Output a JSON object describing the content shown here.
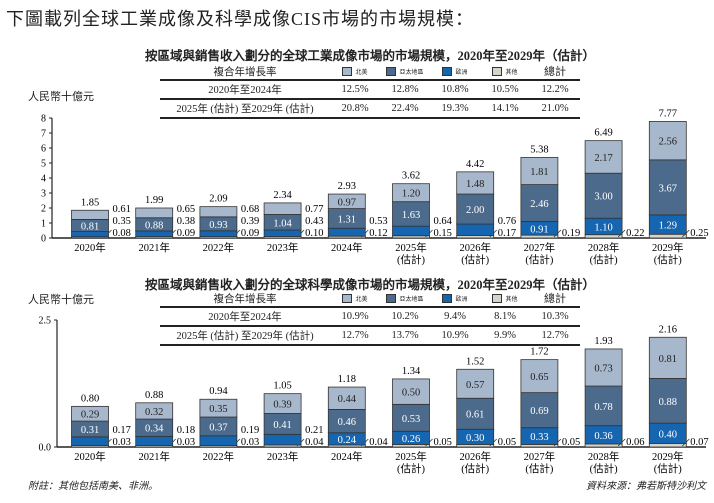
{
  "page_title": "下圖載列全球工業成像及科學成像CIS市場的市場規模：",
  "legend": {
    "na": "北美",
    "apac": "亞太地區",
    "eu": "歐洲",
    "other": "其他",
    "total": "總計",
    "cagr": "複合年增長率"
  },
  "colors": {
    "na": "#a8b8cc",
    "apac": "#4c6b8c",
    "eu": "#1565b0",
    "other": "#d4d6ce"
  },
  "footnote": "附註：其他包括南美、非洲。",
  "source": "資料來源：弗若斯特沙利文",
  "chart_data": [
    {
      "type": "bar",
      "stacked": true,
      "title": "按區域與銷售收入劃分的全球工業成像市場的市場規模，2020年至2029年（估計）",
      "ylabel": "人民幣十億元",
      "ylim": [
        0,
        8
      ],
      "yticks": [
        "0",
        "1",
        "2",
        "3",
        "4",
        "5",
        "6",
        "7",
        "8"
      ],
      "categories": [
        "2020年",
        "2021年",
        "2022年",
        "2023年",
        "2024年",
        "2025年",
        "2026年",
        "2027年",
        "2028年",
        "2029年"
      ],
      "category_sub": [
        "",
        "",
        "",
        "",
        "",
        "(估計)",
        "(估計)",
        "(估計)",
        "(估計)",
        "(估計)"
      ],
      "series": [
        {
          "name": "其他",
          "key": "other",
          "values": [
            0.08,
            0.09,
            0.09,
            0.1,
            0.12,
            0.15,
            0.17,
            0.19,
            0.22,
            0.25
          ]
        },
        {
          "name": "歐洲",
          "key": "eu",
          "values": [
            0.35,
            0.38,
            0.39,
            0.43,
            0.53,
            0.64,
            0.76,
            0.91,
            1.1,
            1.29
          ]
        },
        {
          "name": "亞太地區",
          "key": "apac",
          "values": [
            0.81,
            0.88,
            0.93,
            1.04,
            1.31,
            1.63,
            2.0,
            2.46,
            3.0,
            3.67
          ]
        },
        {
          "name": "北美",
          "key": "na",
          "values": [
            0.61,
            0.65,
            0.68,
            0.77,
            0.97,
            1.2,
            1.48,
            1.81,
            2.17,
            2.56
          ]
        }
      ],
      "totals": [
        "1.85",
        "1.99",
        "2.09",
        "2.34",
        "2.93",
        "3.62",
        "4.42",
        "5.38",
        "6.49",
        "7.77"
      ],
      "cagr_rows": [
        {
          "period": "2020年至2024年",
          "values": [
            "12.5%",
            "12.8%",
            "10.8%",
            "10.5%",
            "12.2%"
          ]
        },
        {
          "period": "2025年 (估計) 至2029年 (估計)",
          "values": [
            "20.8%",
            "22.4%",
            "19.3%",
            "14.1%",
            "21.0%"
          ]
        }
      ]
    },
    {
      "type": "bar",
      "stacked": true,
      "title": "按區域與銷售收入劃分的全球科學成像市場的市場規模，2020年至2029年（估計）",
      "ylabel": "人民幣十億元",
      "ylim": [
        0,
        2.5
      ],
      "yticks": [
        "0.0",
        "2.5"
      ],
      "categories": [
        "2020年",
        "2021年",
        "2022年",
        "2023年",
        "2024年",
        "2025年",
        "2026年",
        "2027年",
        "2028年",
        "2029年"
      ],
      "category_sub": [
        "",
        "",
        "",
        "",
        "",
        "(估計)",
        "(估計)",
        "(估計)",
        "(估計)",
        "(估計)"
      ],
      "series": [
        {
          "name": "其他",
          "key": "other",
          "values": [
            0.03,
            0.03,
            0.03,
            0.04,
            0.04,
            0.05,
            0.05,
            0.05,
            0.06,
            0.07
          ]
        },
        {
          "name": "歐洲",
          "key": "eu",
          "values": [
            0.17,
            0.18,
            0.19,
            0.21,
            0.24,
            0.26,
            0.3,
            0.33,
            0.36,
            0.4
          ]
        },
        {
          "name": "亞太地區",
          "key": "apac",
          "values": [
            0.31,
            0.34,
            0.37,
            0.41,
            0.46,
            0.53,
            0.61,
            0.69,
            0.78,
            0.88
          ]
        },
        {
          "name": "北美",
          "key": "na",
          "values": [
            0.29,
            0.32,
            0.35,
            0.39,
            0.44,
            0.5,
            0.57,
            0.65,
            0.73,
            0.81
          ]
        }
      ],
      "totals": [
        "0.80",
        "0.88",
        "0.94",
        "1.05",
        "1.18",
        "1.34",
        "1.52",
        "1.72",
        "1.93",
        "2.16"
      ],
      "cagr_rows": [
        {
          "period": "2020年至2024年",
          "values": [
            "10.9%",
            "10.2%",
            "9.4%",
            "8.1%",
            "10.3%"
          ]
        },
        {
          "period": "2025年 (估計) 至2029年 (估計)",
          "values": [
            "12.7%",
            "13.7%",
            "10.9%",
            "9.9%",
            "12.7%"
          ]
        }
      ]
    }
  ]
}
